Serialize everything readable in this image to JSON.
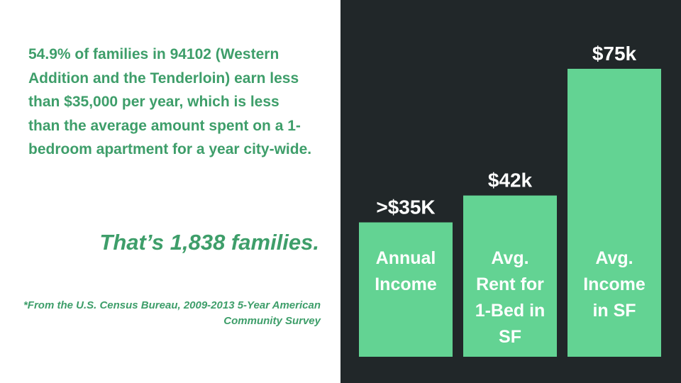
{
  "text": {
    "body": "54.9% of families in 94102 (Western Addition and the Tenderloin) earn less than $35,000 per year, which is less than the average amount spent on a 1-bedroom apartment for a year city-wide.",
    "headline": "That’s 1,838 families.",
    "footnote": "*From the U.S. Census Bureau, 2009-2013 5-Year American Community Survey"
  },
  "colors": {
    "text_green": "#3e9e6a",
    "bar_green": "#63d393",
    "panel_dark": "#212729",
    "label_white": "#ffffff"
  },
  "chart_data": {
    "type": "bar",
    "title": "",
    "xlabel": "",
    "ylabel": "",
    "categories": [
      [
        "Annual",
        "Income"
      ],
      [
        "Avg.",
        "Rent for",
        "1-Bed in",
        "SF"
      ],
      [
        "Avg.",
        "Income",
        "in SF"
      ]
    ],
    "values": [
      35,
      42,
      75
    ],
    "value_labels": [
      ">$35K",
      "$42k",
      "$75k"
    ],
    "units": "thousand USD",
    "ylim": [
      0,
      75
    ],
    "grid": false,
    "legend": "none"
  }
}
